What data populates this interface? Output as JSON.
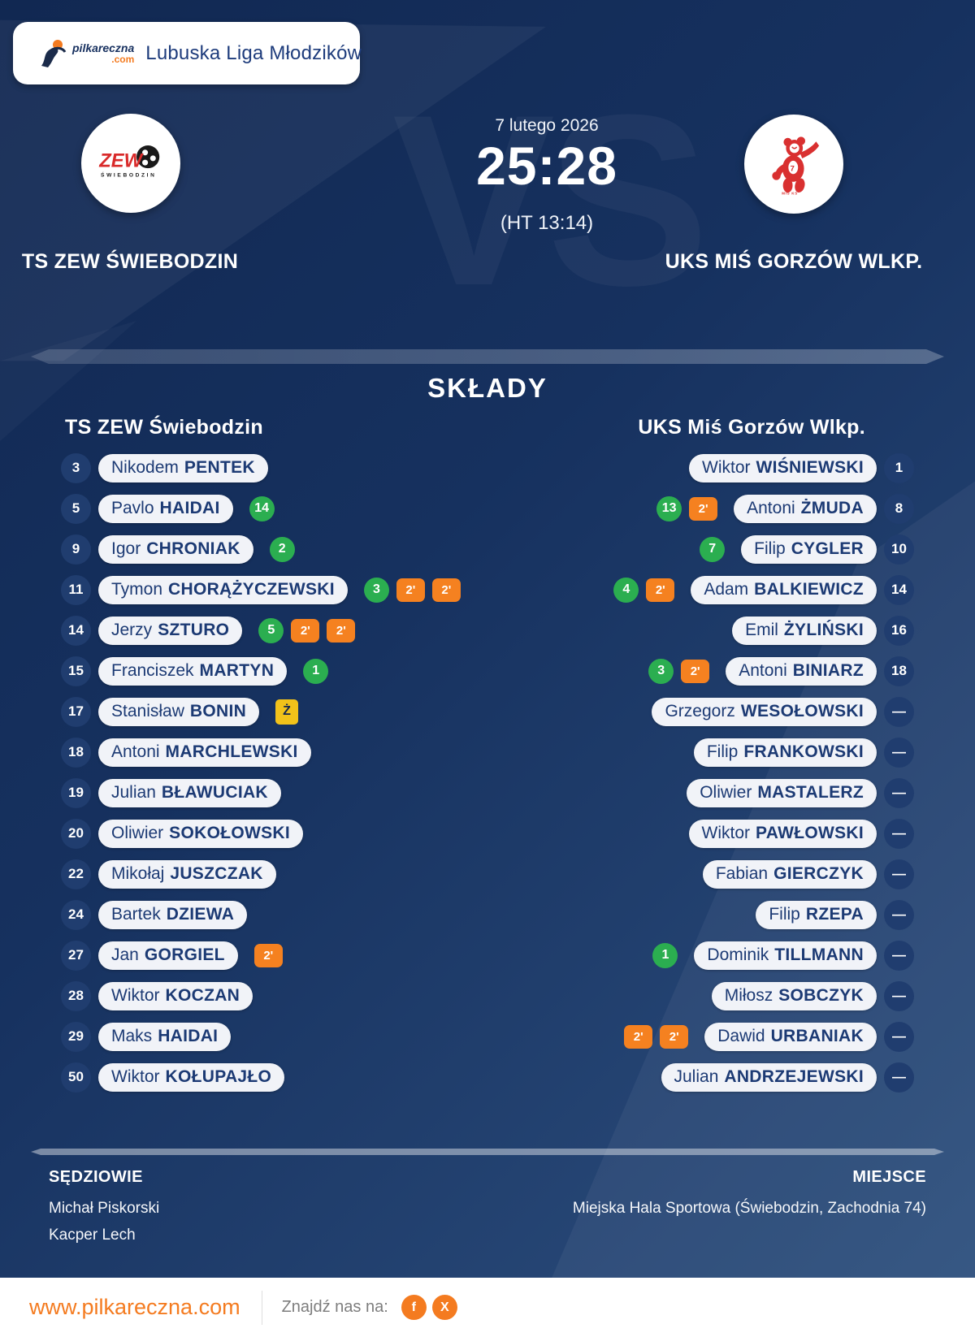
{
  "header": {
    "brand_name": "pilkareczna",
    "brand_tld": ".com",
    "league": "Lubuska Liga Młodzików"
  },
  "match": {
    "date": "7 lutego 2026",
    "score": "25:28",
    "halftime": "(HT 13:14)",
    "vs": "VS",
    "home_name": "TS ZEW ŚWIEBODZIN",
    "away_name": "UKS MIŚ GORZÓW WLKP."
  },
  "lineups": {
    "title": "SKŁADY",
    "home_header": "TS ZEW Świebodzin",
    "away_header": "UKS Miś Gorzów Wlkp.",
    "home": [
      {
        "number": "3",
        "first": "Nikodem",
        "last": "PENTEK"
      },
      {
        "number": "5",
        "first": "Pavlo",
        "last": "HAIDAI",
        "goals": 14
      },
      {
        "number": "9",
        "first": "Igor",
        "last": "CHRONIAK",
        "goals": 2
      },
      {
        "number": "11",
        "first": "Tymon",
        "last": "CHORĄŻYCZEWSKI",
        "goals": 3,
        "pens": 2
      },
      {
        "number": "14",
        "first": "Jerzy",
        "last": "SZTURO",
        "goals": 5,
        "pens": 2
      },
      {
        "number": "15",
        "first": "Franciszek",
        "last": "MARTYN",
        "goals": 1
      },
      {
        "number": "17",
        "first": "Stanisław",
        "last": "BONIN",
        "yellow": true
      },
      {
        "number": "18",
        "first": "Antoni",
        "last": "MARCHLEWSKI"
      },
      {
        "number": "19",
        "first": "Julian",
        "last": "BŁAWUCIAK"
      },
      {
        "number": "20",
        "first": "Oliwier",
        "last": "SOKOŁOWSKI"
      },
      {
        "number": "22",
        "first": "Mikołaj",
        "last": "JUSZCZAK"
      },
      {
        "number": "24",
        "first": "Bartek",
        "last": "DZIEWA"
      },
      {
        "number": "27",
        "first": "Jan",
        "last": "GORGIEL",
        "pens": 1
      },
      {
        "number": "28",
        "first": "Wiktor",
        "last": "KOCZAN"
      },
      {
        "number": "29",
        "first": "Maks",
        "last": "HAIDAI"
      },
      {
        "number": "50",
        "first": "Wiktor",
        "last": "KOŁUPAJŁO"
      }
    ],
    "away": [
      {
        "number": "1",
        "first": "Wiktor",
        "last": "WIŚNIEWSKI"
      },
      {
        "number": "8",
        "first": "Antoni",
        "last": "ŻMUDA",
        "goals": 13,
        "pens": 1
      },
      {
        "number": "10",
        "first": "Filip",
        "last": "CYGLER",
        "goals": 7
      },
      {
        "number": "14",
        "first": "Adam",
        "last": "BALKIEWICZ",
        "goals": 4,
        "pens": 1
      },
      {
        "number": "16",
        "first": "Emil",
        "last": "ŻYLIŃSKI"
      },
      {
        "number": "18",
        "first": "Antoni",
        "last": "BINIARZ",
        "goals": 3,
        "pens": 1
      },
      {
        "number": "—",
        "first": "Grzegorz",
        "last": "WESOŁOWSKI"
      },
      {
        "number": "—",
        "first": "Filip",
        "last": "FRANKOWSKI"
      },
      {
        "number": "—",
        "first": "Oliwier",
        "last": "MASTALERZ"
      },
      {
        "number": "—",
        "first": "Wiktor",
        "last": "PAWŁOWSKI"
      },
      {
        "number": "—",
        "first": "Fabian",
        "last": "GIERCZYK"
      },
      {
        "number": "—",
        "first": "Filip",
        "last": "RZEPA"
      },
      {
        "number": "—",
        "first": "Dominik",
        "last": "TILLMANN",
        "goals": 1
      },
      {
        "number": "—",
        "first": "Miłosz",
        "last": "SOBCZYK"
      },
      {
        "number": "—",
        "first": "Dawid",
        "last": "URBANIAK",
        "pens": 2
      },
      {
        "number": "—",
        "first": "Julian",
        "last": "ANDRZEJEWSKI"
      }
    ]
  },
  "badges": {
    "pen_label": "2'",
    "yellow_label": "Ż"
  },
  "officials": {
    "referees_label": "SĘDZIOWIE",
    "referees": [
      "Michał Piskorski",
      "Kacper Lech"
    ],
    "venue_label": "MIEJSCE",
    "venue": "Miejska Hala Sportowa (Świebodzin, Zachodnia 74)"
  },
  "footer": {
    "url": "www.pilkareczna.com",
    "find_us_label": "Znajdź nas na:",
    "social": [
      "f",
      "X"
    ]
  },
  "colors": {
    "green": "#2bae50",
    "orange": "#f58120",
    "yellow": "#f2c21a",
    "accent_orange": "#f47b20",
    "navy_background": "#16315f",
    "pill_text": "#1c3a74"
  }
}
